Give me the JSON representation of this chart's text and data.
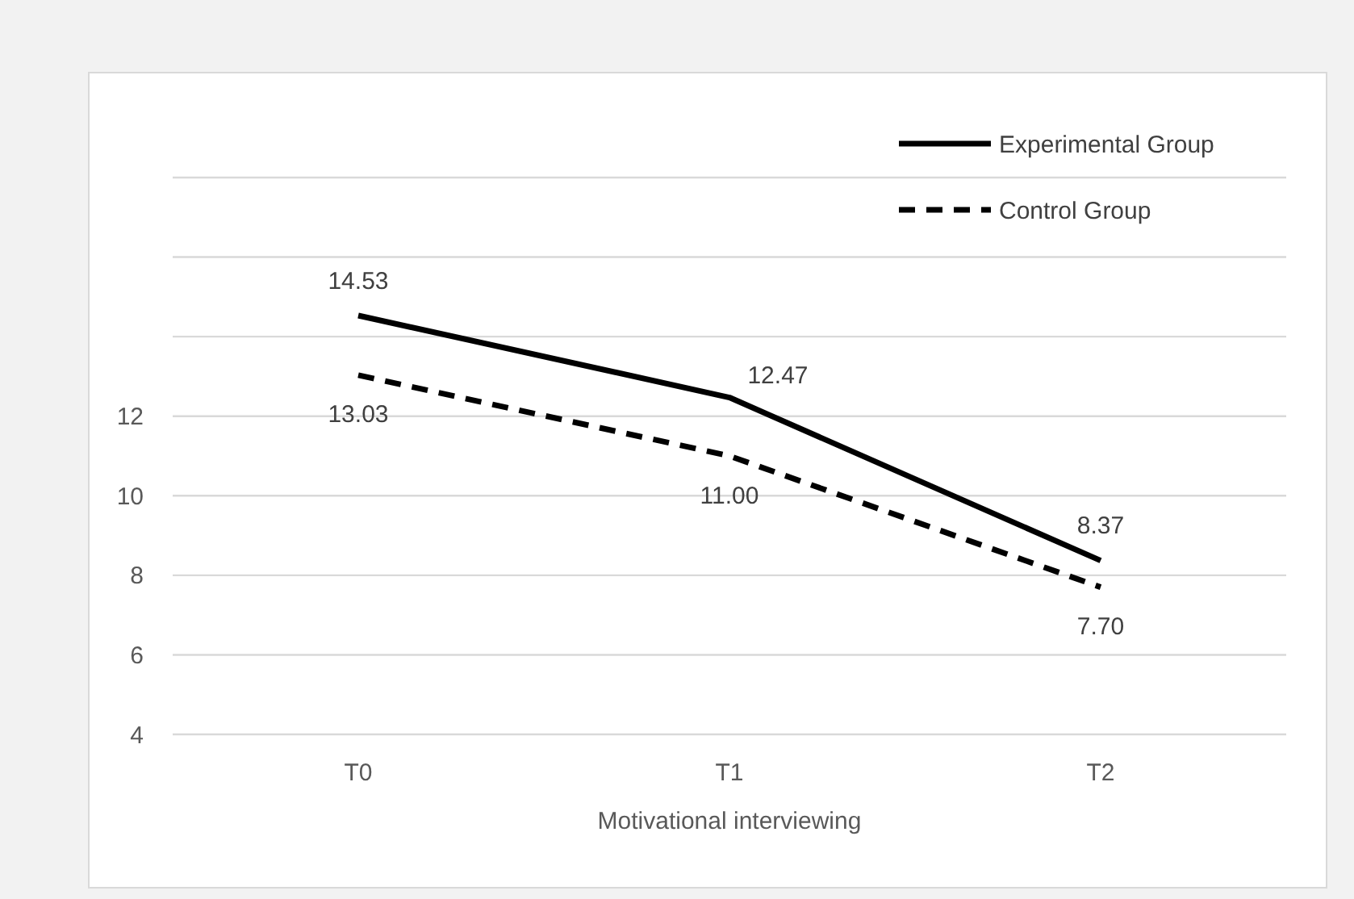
{
  "chart_data": {
    "type": "line",
    "xlabel": "Motivational interviewing",
    "categories": [
      "T0",
      "T1",
      "T2"
    ],
    "series": [
      {
        "name": "Experimental Group",
        "color": "#000000",
        "line_style": "solid",
        "values": [
          14.53,
          12.47,
          8.37
        ],
        "value_labels": [
          "14.53",
          "12.47",
          "8.37"
        ]
      },
      {
        "name": "Control Group",
        "color": "#000000",
        "line_style": "dashed",
        "values": [
          13.03,
          11.0,
          7.7
        ],
        "value_labels": [
          "13.03",
          "11.00",
          "7.70"
        ]
      }
    ],
    "ylim": [
      4,
      18
    ],
    "yticks": [
      4,
      6,
      8,
      10,
      12,
      {
        "value": 14,
        "label": null
      },
      {
        "value": 16,
        "label": null
      },
      {
        "value": 18,
        "label": null
      }
    ],
    "grid": "y",
    "legend": "top right",
    "marker": "none"
  }
}
